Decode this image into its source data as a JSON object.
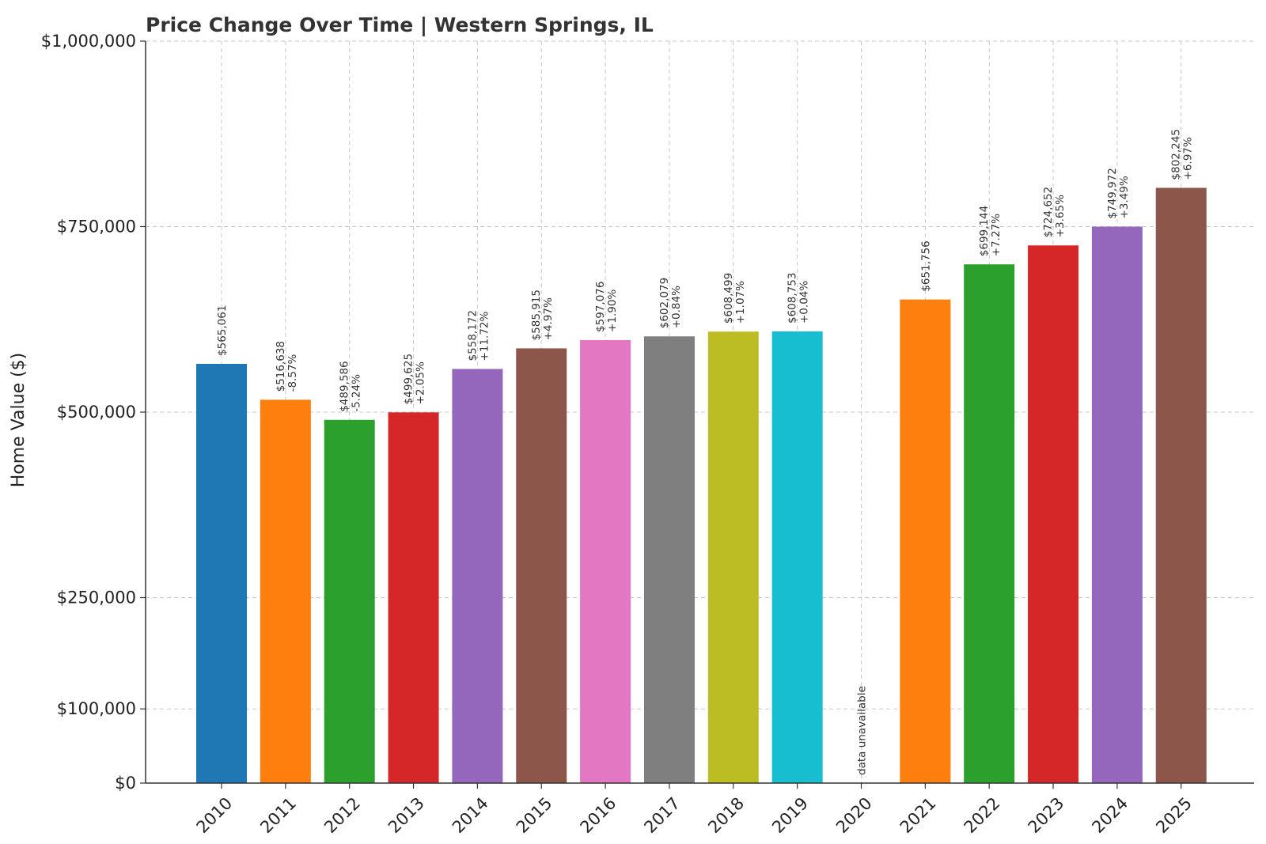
{
  "chart_data": {
    "type": "bar",
    "title": "Price Change Over Time | Western Springs, IL",
    "xlabel": "",
    "ylabel": "Home Value ($)",
    "ylim": [
      0,
      1000000
    ],
    "yticks": [
      {
        "value": 0,
        "label": "$0"
      },
      {
        "value": 100000,
        "label": "$100,000"
      },
      {
        "value": 250000,
        "label": "$250,000"
      },
      {
        "value": 500000,
        "label": "$500,000"
      },
      {
        "value": 750000,
        "label": "$750,000"
      },
      {
        "value": 1000000,
        "label": "$1,000,000"
      }
    ],
    "grid": true,
    "categories": [
      "2010",
      "2011",
      "2012",
      "2013",
      "2014",
      "2015",
      "2016",
      "2017",
      "2018",
      "2019",
      "2020",
      "2021",
      "2022",
      "2023",
      "2024",
      "2025"
    ],
    "values": [
      565061,
      516638,
      489586,
      499625,
      558172,
      585915,
      597076,
      602079,
      608499,
      608753,
      null,
      651756,
      699144,
      724652,
      749972,
      802245
    ],
    "value_labels": [
      "$565,061",
      "$516,638",
      "$489,586",
      "$499,625",
      "$558,172",
      "$585,915",
      "$597,076",
      "$602,079",
      "$608,499",
      "$608,753",
      "",
      "$651,756",
      "$699,144",
      "$724,652",
      "$749,972",
      "$802,245"
    ],
    "change_labels": [
      "",
      "-8.57%",
      "-5.24%",
      "+2.05%",
      "+11.72%",
      "+4.97%",
      "+1.90%",
      "+0.84%",
      "+1.07%",
      "+0.04%",
      "",
      "",
      "+7.27%",
      "+3.65%",
      "+3.49%",
      "+6.97%"
    ],
    "missing_label": "data unavailable",
    "colors": [
      "#1f77b4",
      "#ff7f0e",
      "#2ca02c",
      "#d62728",
      "#9467bd",
      "#8c564b",
      "#e377c2",
      "#7f7f7f",
      "#bcbd22",
      "#17becf",
      "#1f77b4",
      "#ff7f0e",
      "#2ca02c",
      "#d62728",
      "#9467bd",
      "#8c564b"
    ]
  }
}
